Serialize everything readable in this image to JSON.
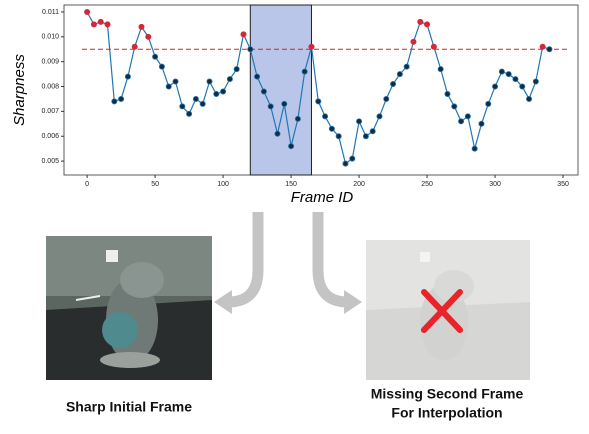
{
  "chart_data": {
    "type": "line",
    "x_label": "Frame ID",
    "y_label": "Sharpness",
    "x": [
      0,
      5,
      10,
      15,
      20,
      25,
      30,
      35,
      40,
      45,
      50,
      55,
      60,
      65,
      70,
      75,
      80,
      85,
      90,
      95,
      100,
      105,
      110,
      115,
      120,
      125,
      130,
      135,
      140,
      145,
      150,
      155,
      160,
      165,
      170,
      175,
      180,
      185,
      190,
      195,
      200,
      205,
      210,
      215,
      220,
      225,
      230,
      235,
      240,
      245,
      250,
      255,
      260,
      265,
      270,
      275,
      280,
      285,
      290,
      295,
      300,
      305,
      310,
      315,
      320,
      325,
      330,
      335,
      340
    ],
    "values": [
      0.011,
      0.0105,
      0.0106,
      0.0105,
      0.0074,
      0.0075,
      0.0084,
      0.0096,
      0.0104,
      0.01,
      0.0092,
      0.0088,
      0.008,
      0.0082,
      0.0072,
      0.0069,
      0.0075,
      0.0073,
      0.0082,
      0.0077,
      0.0078,
      0.0083,
      0.0087,
      0.0101,
      0.0095,
      0.0084,
      0.0078,
      0.0072,
      0.0061,
      0.0073,
      0.0056,
      0.0067,
      0.0086,
      0.0096,
      0.0074,
      0.0068,
      0.0063,
      0.006,
      0.0049,
      0.0051,
      0.0066,
      0.006,
      0.0062,
      0.0068,
      0.0075,
      0.0081,
      0.0085,
      0.0088,
      0.0098,
      0.0106,
      0.0105,
      0.0096,
      0.0087,
      0.0077,
      0.0072,
      0.0066,
      0.0068,
      0.0055,
      0.0065,
      0.0073,
      0.008,
      0.0086,
      0.0085,
      0.0083,
      0.008,
      0.0075,
      0.0082,
      0.0096,
      0.0095
    ],
    "line_color": "#1f77b4",
    "above_color": "#d62738",
    "below_color": "#1b2a3a",
    "threshold": 0.0095,
    "threshold_color": "#d62728",
    "highlight": [
      120,
      165
    ],
    "highlight_color": "#b9c6ea",
    "xlim": [
      -17,
      361
    ],
    "ylim": [
      0.00444,
      0.01128
    ],
    "xticks": [
      0,
      50,
      100,
      150,
      200,
      250,
      300,
      350
    ],
    "yticks": [
      0.005,
      0.006,
      0.007,
      0.008,
      0.009,
      {
        "value": 0.01,
        "label": "0.010"
      },
      0.011
    ]
  },
  "panels": {
    "left_caption": "Sharp Initial Frame",
    "right_caption": [
      "Missing Second Frame",
      "For Interpolation"
    ]
  }
}
